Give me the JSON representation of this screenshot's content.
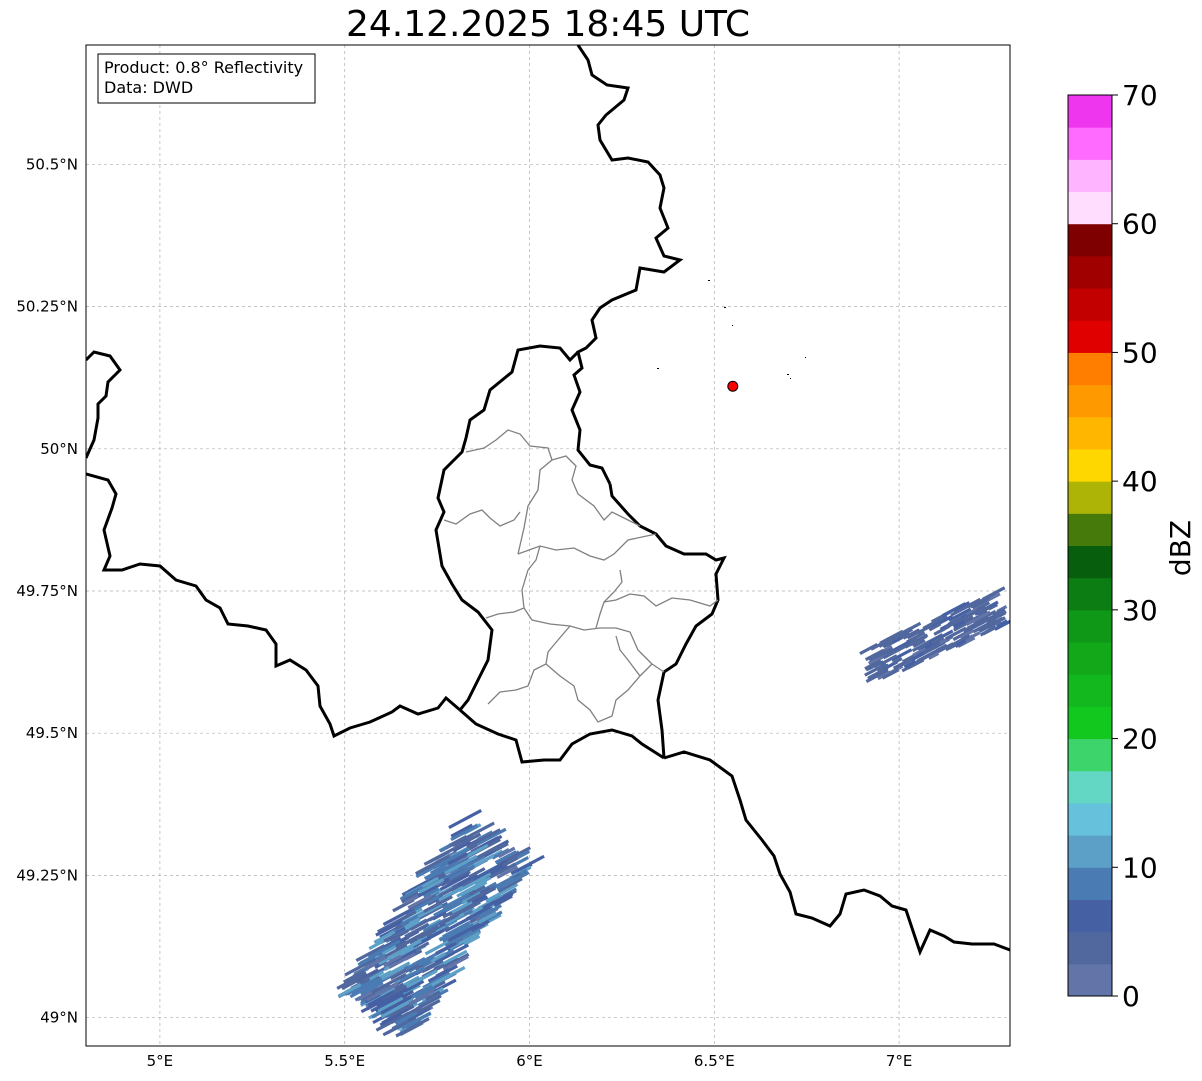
{
  "title": "24.12.2025 18:45 UTC",
  "info": {
    "product_line": "Product: 0.8° Reflectivity",
    "data_line": "Data: DWD"
  },
  "map": {
    "lon_range": [
      4.8,
      7.3
    ],
    "lat_range": [
      48.95,
      50.71
    ],
    "lon_ticks": [
      5.0,
      5.5,
      6.0,
      6.5,
      7.0
    ],
    "lon_tick_labels": [
      "5°E",
      "5.5°E",
      "6°E",
      "6.5°E",
      "7°E"
    ],
    "lat_ticks": [
      49.0,
      49.25,
      49.5,
      49.75,
      50.0,
      50.25,
      50.5
    ],
    "lat_tick_labels": [
      "49°N",
      "49.25°N",
      "49.5°N",
      "49.75°N",
      "50°N",
      "50.25°N",
      "50.5°N"
    ],
    "grid": true,
    "radar_site": {
      "lon": 6.55,
      "lat": 50.11,
      "color": "#ff0000"
    },
    "echoes": [
      {
        "name": "south-west-echo",
        "lon_center": 5.75,
        "lat_center": 49.16,
        "dbz_range": [
          2,
          12
        ]
      },
      {
        "name": "east-echo",
        "lon_center": 7.1,
        "lat_center": 49.67,
        "dbz_range": [
          2,
          6
        ]
      }
    ]
  },
  "colorbar": {
    "label": "dBZ",
    "min": 0,
    "max": 70,
    "ticks": [
      0,
      10,
      20,
      30,
      40,
      50,
      60,
      70
    ],
    "tick_labels": [
      "0",
      "10",
      "20",
      "30",
      "40",
      "50",
      "60",
      "70"
    ],
    "colors": [
      "#6374a8",
      "#51689f",
      "#4560a3",
      "#4b7bb3",
      "#5ca0c8",
      "#66c1dc",
      "#63d7c4",
      "#3dd46c",
      "#12c81e",
      "#12b81e",
      "#12a81a",
      "#0f9818",
      "#0b7d12",
      "#075e0c",
      "#467a0a",
      "#adb406",
      "#ffd700",
      "#ffb600",
      "#ff9900",
      "#ff7e00",
      "#e10000",
      "#c30000",
      "#a00000",
      "#7f0000",
      "#ffddff",
      "#ffb4ff",
      "#ff6bff",
      "#ee36ee"
    ]
  }
}
